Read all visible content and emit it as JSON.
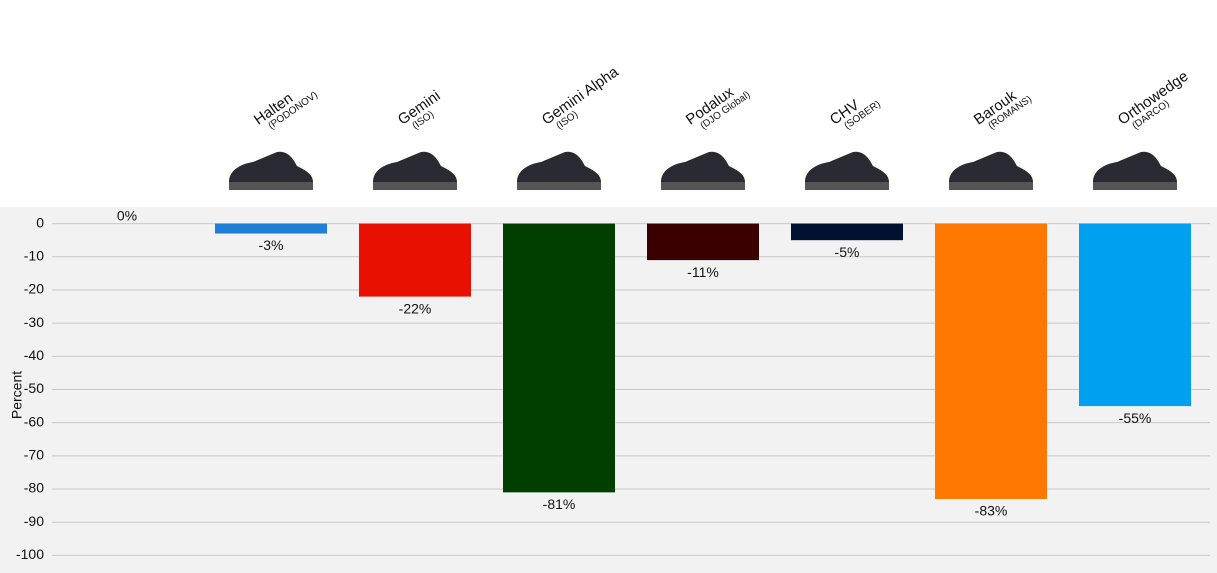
{
  "chart_data": {
    "type": "bar",
    "y_label": "Percent",
    "categories": [
      null,
      "Halten",
      "Gemini",
      "Gemini Alpha",
      "Podalux",
      "CHV",
      "Barouk",
      "Orthowedge"
    ],
    "subtitles": [
      null,
      "(PODONOV)",
      "(ISO)",
      "(ISO)",
      "(DJO Global)",
      "(SOBER)",
      "(ROMANS)",
      "(DARCO)"
    ],
    "values": [
      0,
      -3,
      -22,
      -81,
      -11,
      -5,
      -83,
      -55
    ],
    "value_labels": [
      "0%",
      "-3%",
      "-22%",
      "-81%",
      "-11%",
      "-5%",
      "-83%",
      "-55%"
    ],
    "colors": [
      "#888888",
      "#1f7fd6",
      "#e81000",
      "#003f00",
      "#3a0000",
      "#001030",
      "#ff7800",
      "#00a0f0"
    ],
    "ylim": [
      -105,
      5
    ],
    "yticks": [
      0,
      -10,
      -20,
      -30,
      -40,
      -50,
      -60,
      -70,
      -80,
      -90,
      -100
    ],
    "grid": true
  }
}
